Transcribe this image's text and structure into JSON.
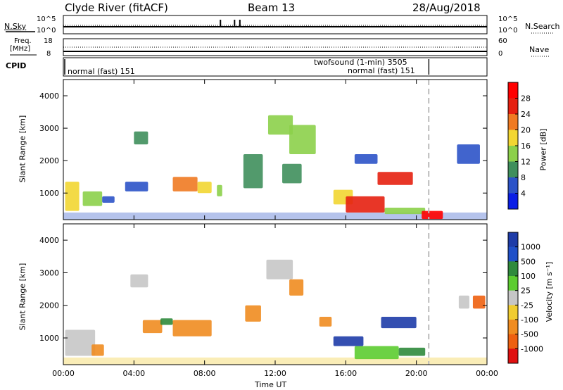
{
  "header": {
    "site": "Clyde River (fitACF)",
    "beam": "Beam 13",
    "date": "28/Aug/2018"
  },
  "summary_panels": {
    "nsky_label": "N.Sky",
    "nsky_ticks": [
      "10^5",
      "10^0"
    ],
    "nsearch_label": "N.Search",
    "nsearch_ticks": [
      "10^5",
      "10^0"
    ],
    "freq_label_1": "Freq.",
    "freq_label_2": "[MHz]",
    "freq_ticks": [
      "18",
      "8"
    ],
    "nave_label": "Nave",
    "nave_ticks": [
      "60",
      "0"
    ],
    "cpid_label": "CPID",
    "cpid_entries": [
      "normal (fast) 151",
      "twofsound (1-min) 3505",
      "normal (fast) 151"
    ]
  },
  "chart_data": [
    {
      "type": "heatmap",
      "name": "power",
      "ylabel": "Slant Range [km]",
      "y_ticks": [
        "1000",
        "2000",
        "3000",
        "4000"
      ],
      "ylim_km": [
        180,
        4500
      ],
      "colorbar": {
        "label": "Power [dB]",
        "ticks": [
          "4",
          "8",
          "12",
          "16",
          "20",
          "24",
          "28"
        ],
        "colors": [
          "#0a1ee6",
          "#2c53c8",
          "#3f8f5c",
          "#8cd04a",
          "#f2d632",
          "#f07a22",
          "#e62010",
          "#ff0000"
        ]
      },
      "x_ticks": [
        "00:00",
        "04:00",
        "08:00",
        "12:00",
        "16:00",
        "20:00",
        "00:00"
      ],
      "xlim_hours": [
        0,
        24
      ],
      "dashed_marker_hour": 20.7,
      "patches": [
        {
          "t0": 0.1,
          "t1": 0.9,
          "r0": 450,
          "r1": 1350,
          "level": 4
        },
        {
          "t0": 1.1,
          "t1": 2.2,
          "r0": 600,
          "r1": 1050,
          "level": 3
        },
        {
          "t0": 2.2,
          "t1": 2.9,
          "r0": 700,
          "r1": 900,
          "level": 1
        },
        {
          "t0": 3.5,
          "t1": 4.8,
          "r0": 1050,
          "r1": 1350,
          "level": 1
        },
        {
          "t0": 4.0,
          "t1": 4.8,
          "r0": 2500,
          "r1": 2900,
          "level": 2
        },
        {
          "t0": 6.2,
          "t1": 7.6,
          "r0": 1050,
          "r1": 1500,
          "level": 5
        },
        {
          "t0": 7.6,
          "t1": 8.4,
          "r0": 1000,
          "r1": 1350,
          "level": 4
        },
        {
          "t0": 8.7,
          "t1": 9.0,
          "r0": 900,
          "r1": 1250,
          "level": 3
        },
        {
          "t0": 10.2,
          "t1": 11.3,
          "r0": 1150,
          "r1": 2200,
          "level": 2
        },
        {
          "t0": 11.6,
          "t1": 13.0,
          "r0": 2800,
          "r1": 3400,
          "level": 3
        },
        {
          "t0": 12.8,
          "t1": 14.3,
          "r0": 2200,
          "r1": 3100,
          "level": 3
        },
        {
          "t0": 12.4,
          "t1": 13.5,
          "r0": 1300,
          "r1": 1900,
          "level": 2
        },
        {
          "t0": 15.3,
          "t1": 16.4,
          "r0": 650,
          "r1": 1100,
          "level": 4
        },
        {
          "t0": 16.0,
          "t1": 18.2,
          "r0": 400,
          "r1": 900,
          "level": 6
        },
        {
          "t0": 18.2,
          "t1": 20.5,
          "r0": 350,
          "r1": 550,
          "level": 3
        },
        {
          "t0": 17.8,
          "t1": 19.8,
          "r0": 1250,
          "r1": 1650,
          "level": 6
        },
        {
          "t0": 16.5,
          "t1": 17.8,
          "r0": 1900,
          "r1": 2200,
          "level": 1
        },
        {
          "t0": 22.3,
          "t1": 23.6,
          "r0": 1900,
          "r1": 2500,
          "level": 1
        },
        {
          "t0": 20.3,
          "t1": 21.5,
          "r0": 200,
          "r1": 450,
          "level": 7
        }
      ]
    },
    {
      "type": "heatmap",
      "name": "velocity",
      "ylabel": "Slant Range [km]",
      "y_ticks": [
        "1000",
        "2000",
        "3000",
        "4000"
      ],
      "ylim_km": [
        180,
        4500
      ],
      "colorbar": {
        "label": "Velocity [m s⁻¹]",
        "ticks": [
          "1000",
          "500",
          "100",
          "25",
          "-25",
          "-100",
          "-500",
          "-1000"
        ],
        "colors": [
          "#1e3ca8",
          "#2050c8",
          "#2f8a3c",
          "#5ccc30",
          "#c6c6c6",
          "#f0cc30",
          "#f08c20",
          "#ee6010",
          "#e01010"
        ]
      },
      "x_ticks": [
        "00:00",
        "04:00",
        "08:00",
        "12:00",
        "16:00",
        "20:00",
        "00:00"
      ],
      "xlim_hours": [
        0,
        24
      ],
      "dashed_marker_hour": 20.7,
      "xlabel": "Time UT",
      "patches": [
        {
          "t0": 0.1,
          "t1": 1.8,
          "r0": 450,
          "r1": 1250,
          "level": 4
        },
        {
          "t0": 1.6,
          "t1": 2.3,
          "r0": 450,
          "r1": 800,
          "level": 6
        },
        {
          "t0": 3.8,
          "t1": 4.8,
          "r0": 2550,
          "r1": 2950,
          "level": 4
        },
        {
          "t0": 4.5,
          "t1": 5.6,
          "r0": 1150,
          "r1": 1550,
          "level": 6
        },
        {
          "t0": 6.2,
          "t1": 8.4,
          "r0": 1050,
          "r1": 1550,
          "level": 6
        },
        {
          "t0": 5.5,
          "t1": 6.2,
          "r0": 1400,
          "r1": 1600,
          "level": 2
        },
        {
          "t0": 11.5,
          "t1": 13.0,
          "r0": 2800,
          "r1": 3400,
          "level": 4
        },
        {
          "t0": 12.8,
          "t1": 13.6,
          "r0": 2300,
          "r1": 2800,
          "level": 6
        },
        {
          "t0": 10.3,
          "t1": 11.2,
          "r0": 1500,
          "r1": 2000,
          "level": 6
        },
        {
          "t0": 14.5,
          "t1": 15.2,
          "r0": 1350,
          "r1": 1650,
          "level": 6
        },
        {
          "t0": 16.5,
          "t1": 19.0,
          "r0": 350,
          "r1": 750,
          "level": 3
        },
        {
          "t0": 19.0,
          "t1": 20.5,
          "r0": 450,
          "r1": 700,
          "level": 2
        },
        {
          "t0": 15.3,
          "t1": 17.0,
          "r0": 750,
          "r1": 1050,
          "level": 0
        },
        {
          "t0": 18.0,
          "t1": 20.0,
          "r0": 1300,
          "r1": 1650,
          "level": 0
        },
        {
          "t0": 22.4,
          "t1": 23.0,
          "r0": 1900,
          "r1": 2300,
          "level": 4
        },
        {
          "t0": 23.2,
          "t1": 23.9,
          "r0": 1900,
          "r1": 2300,
          "level": 7
        }
      ]
    }
  ]
}
